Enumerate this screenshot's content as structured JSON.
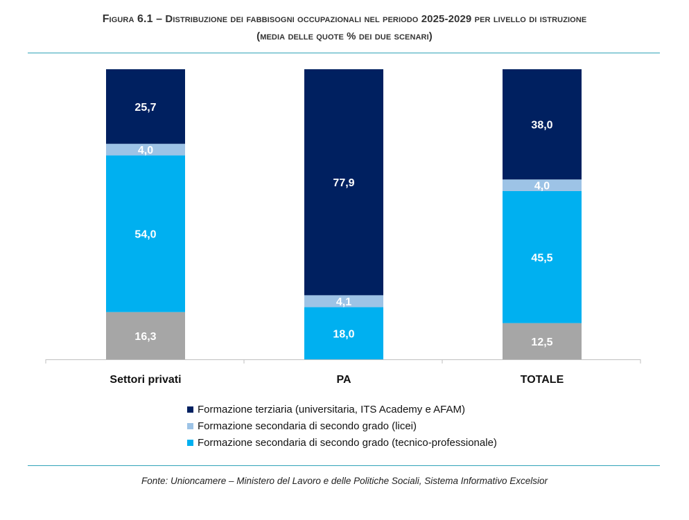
{
  "figure": {
    "title_prefix": "Figura 6.1 –",
    "title_main": "Distribuzione dei fabbisogni occupazionali nel periodo 2025-2029 per livello di istruzione",
    "subtitle": "(media delle quote % dei due scenari)",
    "source": "Fonte: Unioncamere – Ministero del Lavoro e delle Politiche Sociali, Sistema Informativo Excelsior"
  },
  "chart_data": {
    "type": "bar",
    "stacked": true,
    "title": "Distribuzione dei fabbisogni occupazionali nel periodo 2025-2029 per livello di istruzione",
    "subtitle": "(media delle quote % dei due scenari)",
    "categories": [
      "Settori privati",
      "PA",
      "TOTALE"
    ],
    "ylim": [
      0,
      100
    ],
    "grid": false,
    "legend_position": "bottom",
    "series": [
      {
        "name": "",
        "color": "#a6a6a6",
        "values": [
          16.3,
          null,
          12.5
        ],
        "labels": [
          "16,3",
          "",
          "12,5"
        ]
      },
      {
        "name": "Formazione secondaria di secondo grado (tecnico-professionale)",
        "color": "#00b0f0",
        "values": [
          54.0,
          18.0,
          45.5
        ],
        "labels": [
          "54,0",
          "18,0",
          "45,5"
        ]
      },
      {
        "name": "Formazione secondaria di secondo grado (licei)",
        "color": "#9dc3e6",
        "values": [
          4.0,
          4.1,
          4.0
        ],
        "labels": [
          "4,0",
          "4,1",
          "4,0"
        ]
      },
      {
        "name": "Formazione terziaria (universitaria, ITS Academy e AFAM)",
        "color": "#002060",
        "values": [
          25.7,
          77.9,
          38.0
        ],
        "labels": [
          "25,7",
          "77,9",
          "38,0"
        ]
      }
    ],
    "legend": [
      {
        "label": "Formazione terziaria (universitaria, ITS Academy e AFAM)",
        "color": "#002060"
      },
      {
        "label": "Formazione secondaria di secondo grado (licei)",
        "color": "#9dc3e6"
      },
      {
        "label": "Formazione secondaria di secondo grado (tecnico-professionale)",
        "color": "#00b0f0"
      }
    ]
  }
}
